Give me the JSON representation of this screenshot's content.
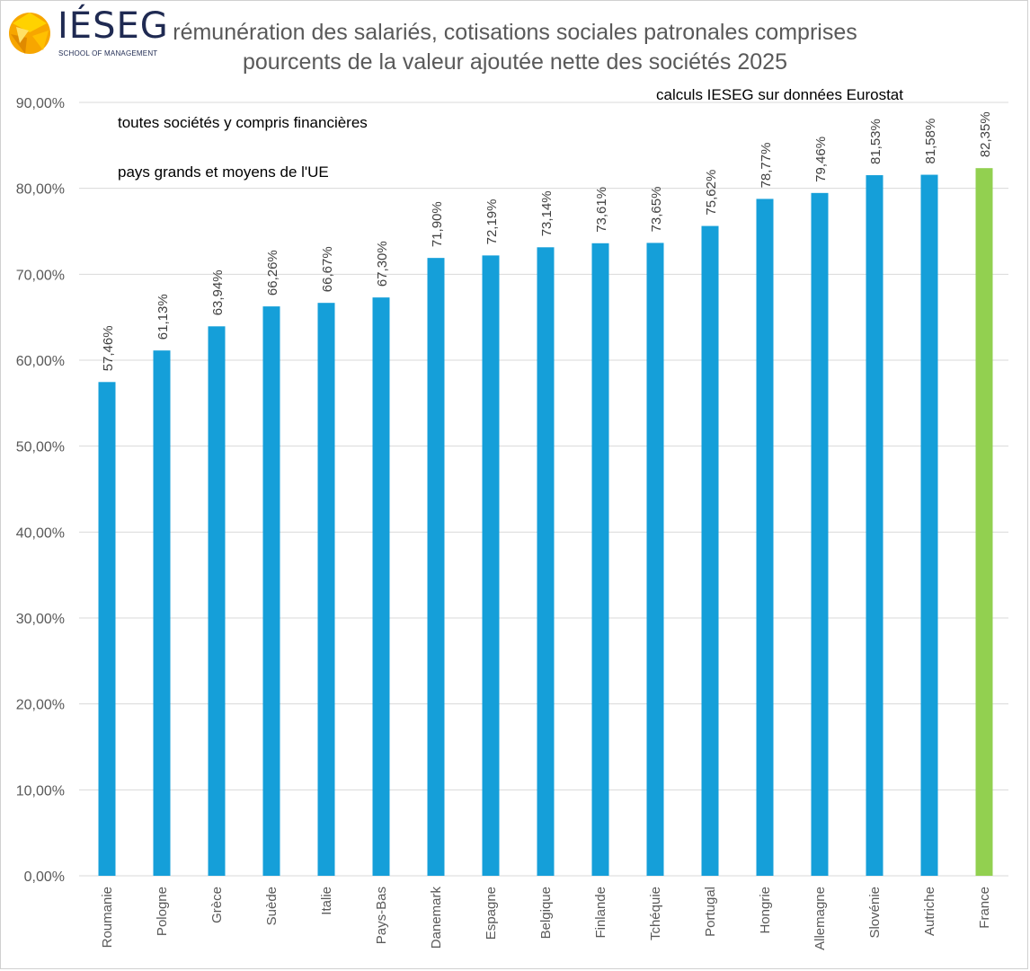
{
  "logo": {
    "wordmark": "IÉSEG",
    "subtitle": "SCHOOL OF MANAGEMENT"
  },
  "titles": {
    "line1": "rémunération des salariés, cotisations sociales patronales comprises",
    "line2": "pourcents de la valeur ajoutée nette des sociétés 2025"
  },
  "annotations": {
    "source": "calculs IESEG sur données Eurostat",
    "scope": "toutes sociétés y compris financières",
    "countries": "pays grands et moyens de l'UE"
  },
  "colors": {
    "bar": "#159fd9",
    "highlight": "#92d050",
    "grid": "#d9d9d9",
    "axis_text": "#595959",
    "title_text": "#595959",
    "logo_navy": "#1f2a52",
    "logo_orange": "#f7a600",
    "logo_yellow": "#ffd200"
  },
  "chart_data": {
    "type": "bar",
    "categories": [
      "Roumanie",
      "Pologne",
      "Grèce",
      "Suède",
      "Italie",
      "Pays-Bas",
      "Danemark",
      "Espagne",
      "Belgique",
      "Finlande",
      "Tchéquie",
      "Portugal",
      "Hongrie",
      "Allemagne",
      "Slovénie",
      "Autriche",
      "France"
    ],
    "values": [
      57.46,
      61.13,
      63.94,
      66.26,
      66.67,
      67.3,
      71.9,
      72.19,
      73.14,
      73.61,
      73.65,
      75.62,
      78.77,
      79.46,
      81.53,
      81.58,
      82.35
    ],
    "data_labels": [
      "57,46%",
      "61,13%",
      "63,94%",
      "66,26%",
      "66,67%",
      "67,30%",
      "71,90%",
      "72,19%",
      "73,14%",
      "73,61%",
      "73,65%",
      "75,62%",
      "78,77%",
      "79,46%",
      "81,53%",
      "81,58%",
      "82,35%"
    ],
    "highlight_category": "France",
    "ylim": [
      0,
      90
    ],
    "yticks": [
      0,
      10,
      20,
      30,
      40,
      50,
      60,
      70,
      80,
      90
    ],
    "ytick_labels": [
      "0,00%",
      "10,00%",
      "20,00%",
      "30,00%",
      "40,00%",
      "50,00%",
      "60,00%",
      "70,00%",
      "80,00%",
      "90,00%"
    ],
    "xlabel": "",
    "ylabel": "",
    "grid": true,
    "legend": "none"
  }
}
